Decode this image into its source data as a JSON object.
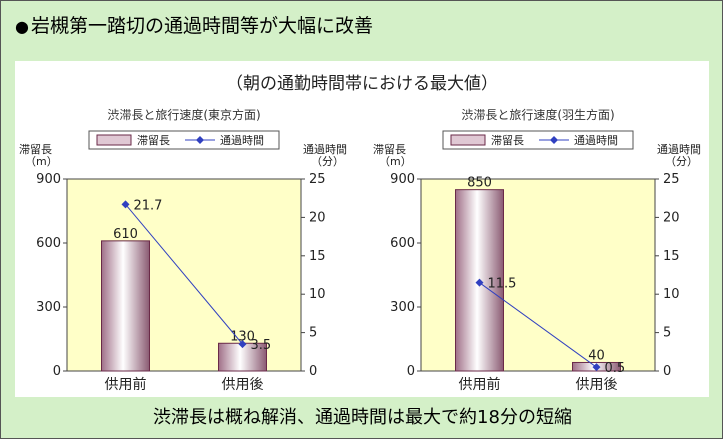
{
  "header": {
    "bullet": "●",
    "title": "岩槻第一踏切の通過時間等が大幅に改善"
  },
  "subtitle": "（朝の通勤時間帯における最大値）",
  "footer": "渋滞長は概ね解消、通過時間は最大で約18分の短縮",
  "colors": {
    "outer_bg": "#d4f0c8",
    "plot_bg": "#ffffc8",
    "bar_fill": "#e0c8d4",
    "bar_edge": "#6a2a48",
    "line": "#3040c0"
  },
  "chart_data": [
    {
      "type": "bar+line",
      "title": "渋滞長と旅行速度(東京方面)",
      "categories": [
        "供用前",
        "供用後"
      ],
      "left_axis": {
        "label_line1": "滞留長",
        "label_line2": "（m）",
        "ticks": [
          0,
          300,
          600,
          900
        ],
        "range": [
          0,
          900
        ]
      },
      "right_axis": {
        "label_line1": "通過時間",
        "label_line2": "（分）",
        "ticks": [
          0,
          5,
          10,
          15,
          20,
          25
        ],
        "range": [
          0,
          25
        ]
      },
      "series": [
        {
          "name": "滞留長",
          "kind": "bar",
          "values": [
            610,
            130
          ],
          "labels": [
            "610",
            "130"
          ]
        },
        {
          "name": "通過時間",
          "kind": "line",
          "values": [
            21.7,
            3.5
          ],
          "labels": [
            "21.7",
            "3.5"
          ]
        }
      ],
      "legend": [
        "滞留長",
        "通過時間"
      ]
    },
    {
      "type": "bar+line",
      "title": "渋滞長と旅行速度(羽生方面)",
      "categories": [
        "供用前",
        "供用後"
      ],
      "left_axis": {
        "label_line1": "滞留長",
        "label_line2": "（m）",
        "ticks": [
          0,
          300,
          600,
          900
        ],
        "range": [
          0,
          900
        ]
      },
      "right_axis": {
        "label_line1": "通過時間",
        "label_line2": "（分）",
        "ticks": [
          0,
          5,
          10,
          15,
          20,
          25
        ],
        "range": [
          0,
          25
        ]
      },
      "series": [
        {
          "name": "滞留長",
          "kind": "bar",
          "values": [
            850,
            40
          ],
          "labels": [
            "850",
            "40"
          ]
        },
        {
          "name": "通過時間",
          "kind": "line",
          "values": [
            11.5,
            0.5
          ],
          "labels": [
            "11.5",
            "0.5"
          ]
        }
      ],
      "legend": [
        "滞留長",
        "通過時間"
      ]
    }
  ]
}
